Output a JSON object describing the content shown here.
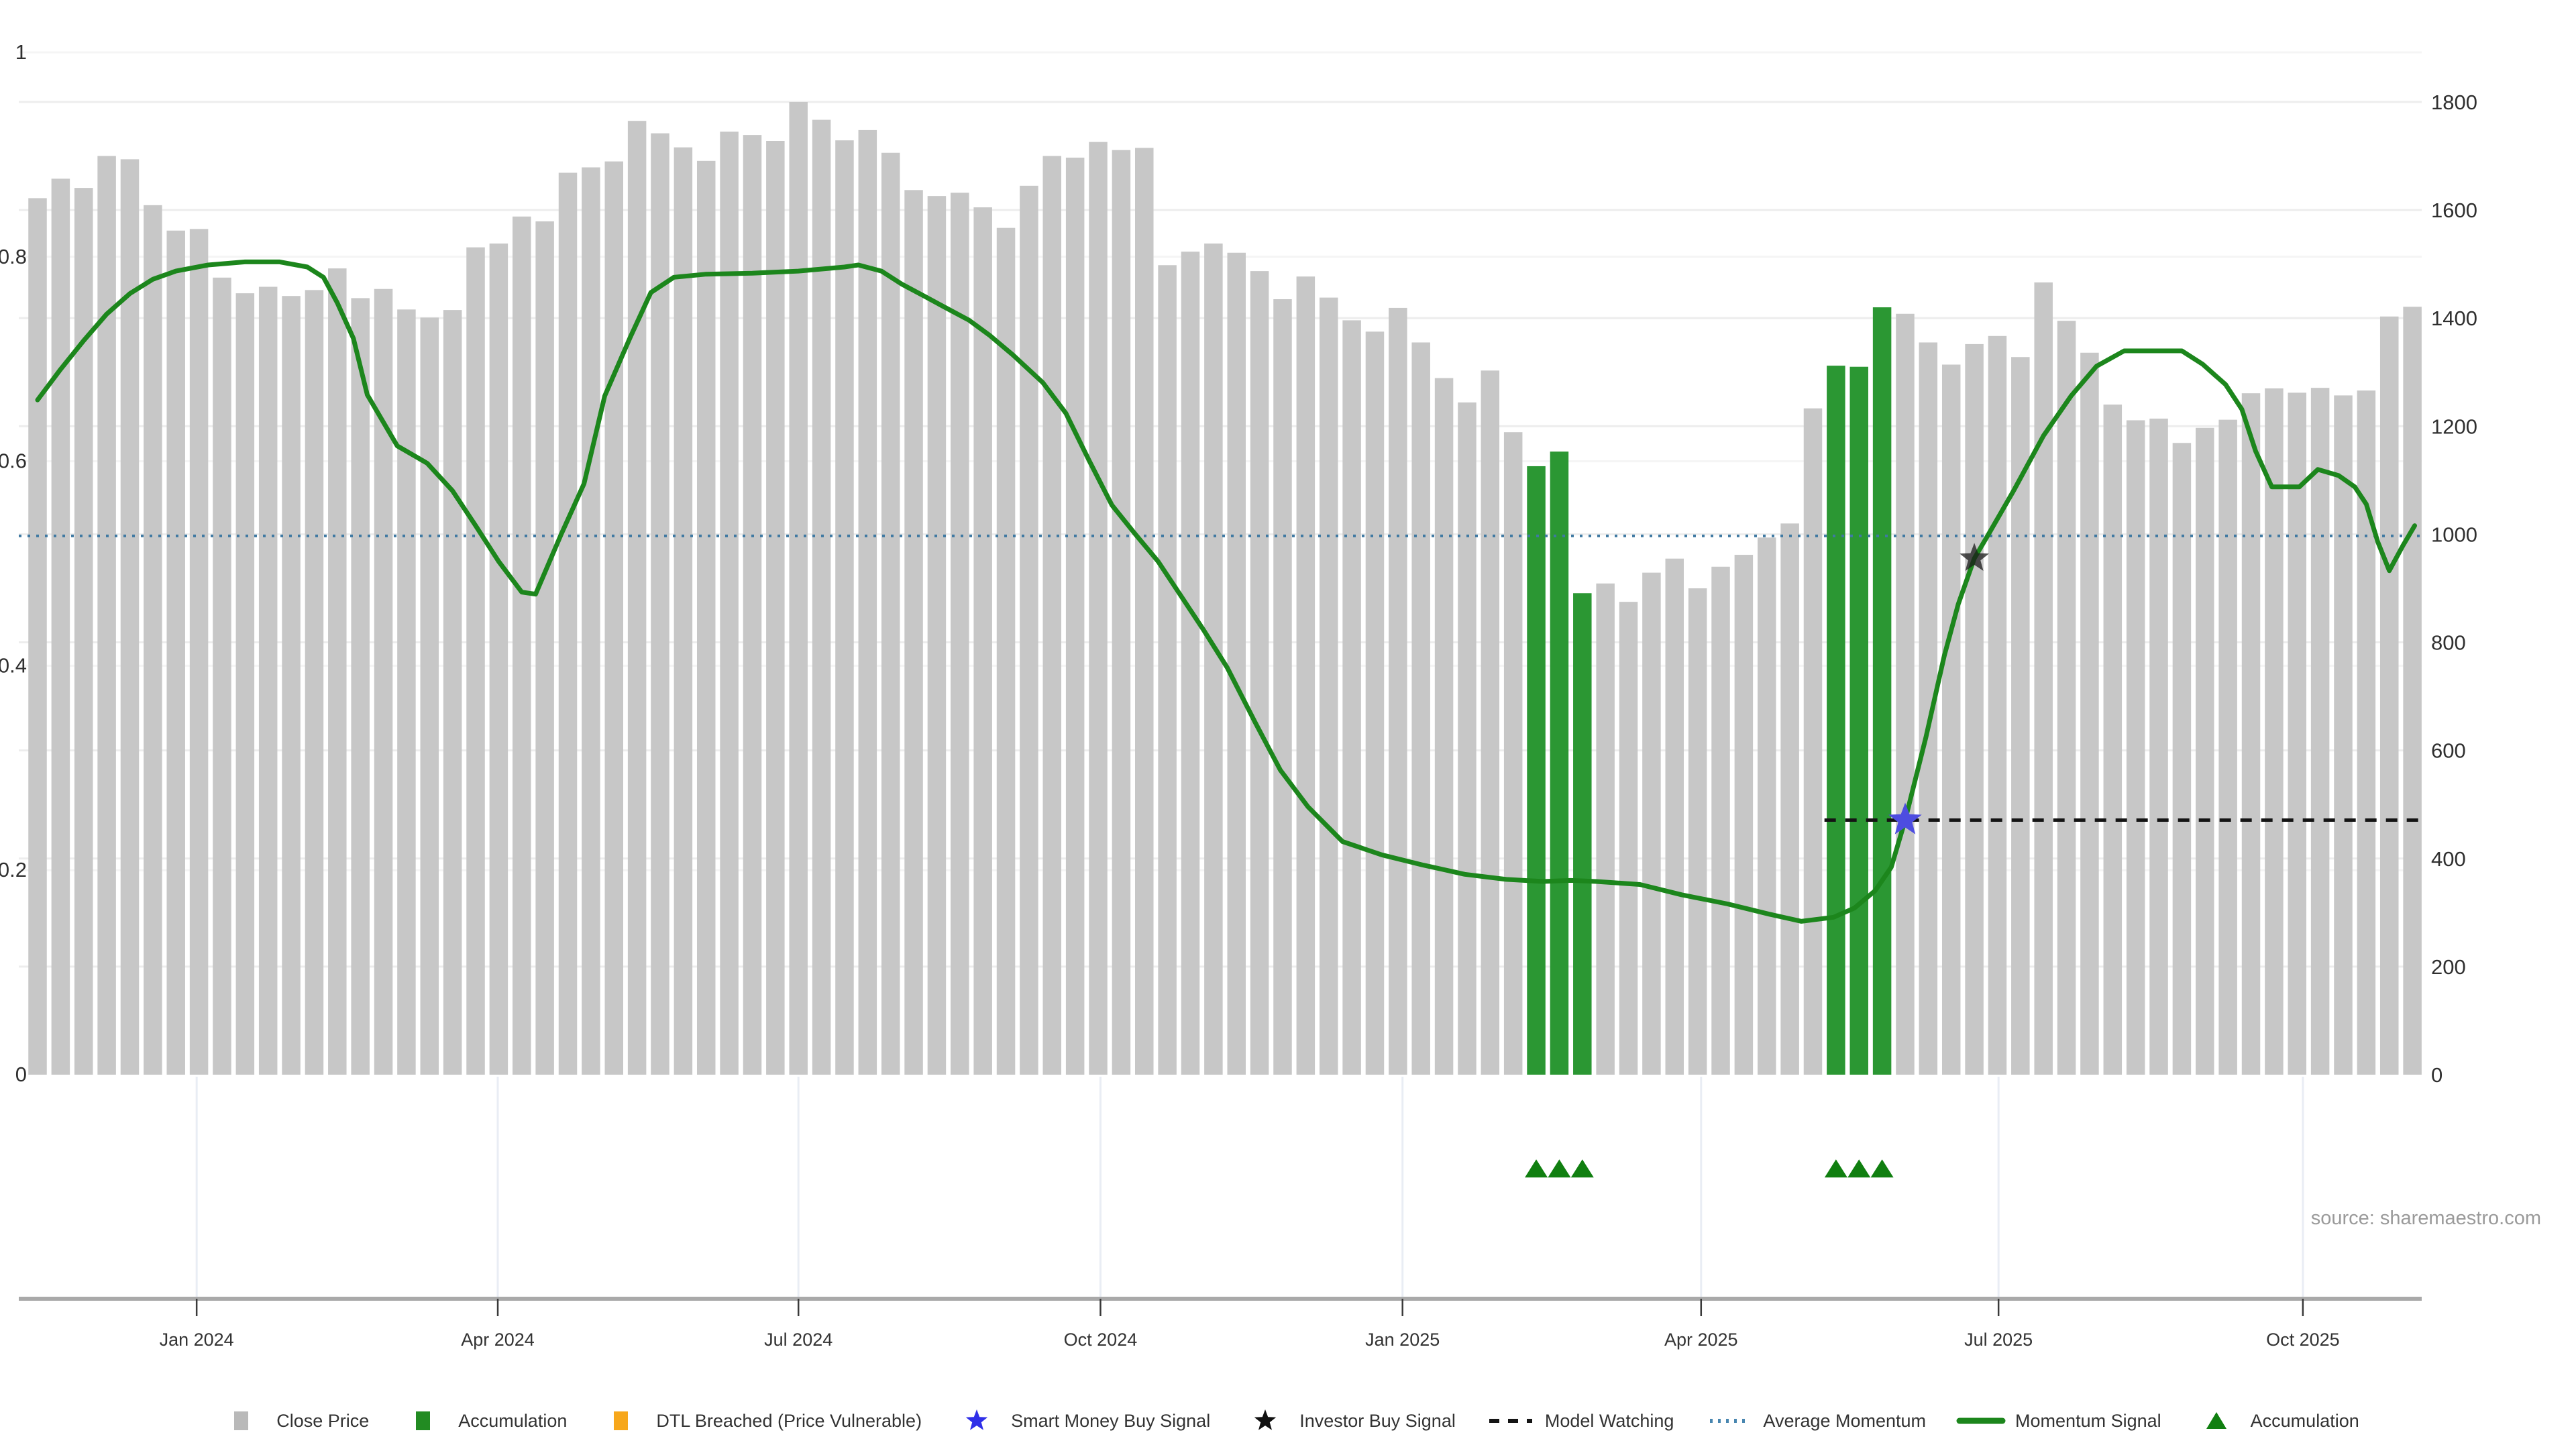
{
  "chart_data": {
    "type": "bar",
    "title": "",
    "source": "source: sharemaestro.com",
    "layout_hints": {
      "grid": "on",
      "legend_position": "bottom-center",
      "bar_color": "#c7c7c7"
    },
    "x_axis": {
      "tick_labels": [
        "Jan 2024",
        "Apr 2024",
        "Jul 2024",
        "Oct 2024",
        "Jan 2025",
        "Apr 2025",
        "Jul 2025",
        "Oct 2025"
      ],
      "tick_week_positions": [
        6.9,
        19.96,
        33.0,
        46.1,
        59.2,
        72.15,
        85.05,
        98.25
      ]
    },
    "y_axis_left": {
      "tick_values": [
        0,
        0.2,
        0.4,
        0.6,
        0.8,
        1
      ],
      "tick_labels": [
        "0",
        "0.2",
        "0.4",
        "0.6",
        "0.8",
        "1"
      ],
      "range": [
        -0.22,
        1.05
      ]
    },
    "y_axis_right": {
      "tick_values": [
        0,
        200,
        400,
        600,
        800,
        1000,
        1200,
        1400,
        1600,
        1800
      ],
      "range": [
        -420,
        1990
      ]
    },
    "series": {
      "close_price": {
        "name": "Close Price",
        "axis": "right",
        "values": [
          1622,
          1658,
          1641,
          1700,
          1694,
          1609,
          1562,
          1565,
          1475,
          1446,
          1458,
          1441,
          1452,
          1492,
          1437,
          1454,
          1416,
          1401,
          1415,
          1531,
          1538,
          1588,
          1579,
          1669,
          1679,
          1690,
          1765,
          1742,
          1716,
          1691,
          1745,
          1739,
          1728,
          1800,
          1767,
          1729,
          1748,
          1706,
          1637,
          1626,
          1632,
          1605,
          1567,
          1645,
          1700,
          1697,
          1726,
          1711,
          1715,
          1498,
          1523,
          1538,
          1521,
          1487,
          1435,
          1477,
          1438,
          1396,
          1375,
          1419,
          1355,
          1289,
          1244,
          1303,
          1189,
          1126,
          1153,
          891,
          909,
          875,
          929,
          955,
          900,
          940,
          962,
          994,
          1020,
          1233,
          1312,
          1310,
          1420,
          1408,
          1355,
          1314,
          1352,
          1367,
          1328,
          1466,
          1395,
          1336,
          1240,
          1211,
          1214,
          1169,
          1197,
          1212,
          1261,
          1270,
          1262,
          1271,
          1257,
          1266,
          1403,
          1421
        ]
      },
      "accumulation_bar_indices": [
        65,
        66,
        67,
        78,
        79,
        80
      ],
      "momentum_signal": {
        "name": "Momentum Signal",
        "axis": "left",
        "points": [
          [
            0,
            0.66
          ],
          [
            1,
            0.69
          ],
          [
            2,
            0.718
          ],
          [
            3,
            0.744
          ],
          [
            4,
            0.764
          ],
          [
            5,
            0.778
          ],
          [
            6,
            0.786
          ],
          [
            7.4,
            0.792
          ],
          [
            9,
            0.795
          ],
          [
            10.5,
            0.795
          ],
          [
            11.7,
            0.79
          ],
          [
            12.4,
            0.78
          ],
          [
            13,
            0.755
          ],
          [
            13.7,
            0.72
          ],
          [
            14.3,
            0.665
          ],
          [
            15.6,
            0.615
          ],
          [
            16.9,
            0.598
          ],
          [
            18,
            0.571
          ],
          [
            19,
            0.537
          ],
          [
            20,
            0.502
          ],
          [
            21,
            0.472
          ],
          [
            21.6,
            0.47
          ],
          [
            22.7,
            0.528
          ],
          [
            23.7,
            0.578
          ],
          [
            24.6,
            0.664
          ],
          [
            25.7,
            0.721
          ],
          [
            26.6,
            0.765
          ],
          [
            27.6,
            0.78
          ],
          [
            29,
            0.783
          ],
          [
            31,
            0.784
          ],
          [
            33,
            0.786
          ],
          [
            35,
            0.79
          ],
          [
            35.6,
            0.792
          ],
          [
            36.6,
            0.786
          ],
          [
            37.5,
            0.773
          ],
          [
            38.5,
            0.761
          ],
          [
            39.4,
            0.75
          ],
          [
            40.4,
            0.738
          ],
          [
            41.3,
            0.723
          ],
          [
            42.3,
            0.704
          ],
          [
            43.6,
            0.677
          ],
          [
            44.6,
            0.647
          ],
          [
            45.6,
            0.601
          ],
          [
            46.6,
            0.557
          ],
          [
            47.6,
            0.529
          ],
          [
            48.6,
            0.502
          ],
          [
            49.6,
            0.468
          ],
          [
            50.6,
            0.434
          ],
          [
            51.6,
            0.398
          ],
          [
            52.8,
            0.345
          ],
          [
            53.9,
            0.298
          ],
          [
            55.1,
            0.262
          ],
          [
            56.6,
            0.228
          ],
          [
            58.3,
            0.215
          ],
          [
            60.1,
            0.205
          ],
          [
            61.9,
            0.196
          ],
          [
            63.7,
            0.191
          ],
          [
            65.3,
            0.189
          ],
          [
            66.5,
            0.19
          ],
          [
            67.6,
            0.189
          ],
          [
            69.5,
            0.186
          ],
          [
            71.3,
            0.176
          ],
          [
            73.3,
            0.167
          ],
          [
            75.1,
            0.157
          ],
          [
            76.5,
            0.15
          ],
          [
            77.9,
            0.154
          ],
          [
            78.8,
            0.163
          ],
          [
            79.7,
            0.18
          ],
          [
            80.4,
            0.203
          ],
          [
            81,
            0.249
          ],
          [
            81.9,
            0.33
          ],
          [
            82.7,
            0.41
          ],
          [
            83.3,
            0.46
          ],
          [
            84,
            0.505
          ],
          [
            84.6,
            0.528
          ],
          [
            85.7,
            0.571
          ],
          [
            87,
            0.625
          ],
          [
            88.2,
            0.664
          ],
          [
            89.3,
            0.693
          ],
          [
            90.5,
            0.708
          ],
          [
            93,
            0.708
          ],
          [
            93.9,
            0.695
          ],
          [
            94.9,
            0.675
          ],
          [
            95.6,
            0.651
          ],
          [
            96.2,
            0.61
          ],
          [
            96.9,
            0.575
          ],
          [
            98.1,
            0.575
          ],
          [
            98.9,
            0.592
          ],
          [
            99.8,
            0.586
          ],
          [
            100.5,
            0.575
          ],
          [
            101,
            0.558
          ],
          [
            101.5,
            0.521
          ],
          [
            102,
            0.493
          ],
          [
            102.6,
            0.518
          ],
          [
            103.1,
            0.537
          ]
        ]
      },
      "average_momentum": {
        "name": "Average Momentum",
        "axis": "left",
        "value": 0.527
      },
      "model_watching": {
        "name": "Model Watching",
        "axis": "left",
        "value": 0.249,
        "from_week": 77.5,
        "to_week": 103.3
      },
      "smart_money_buy_signal": {
        "name": "Smart Money Buy Signal",
        "week": 81,
        "value": 0.249
      },
      "investor_buy_signal": {
        "name": "Investor Buy Signal",
        "week": 84,
        "value": 0.505
      },
      "accumulation_marker_weeks": [
        65,
        66,
        67,
        78,
        79,
        80
      ],
      "accumulation_marker_value": -0.092
    },
    "colors": {
      "bar_gray": "#c7c7c7",
      "accumulation_green": "#2b9733",
      "momentum_line": "#1c861c",
      "triangle_green": "#107f10",
      "average_momentum_blue": "#3f79a2",
      "model_watching_black": "#141414",
      "smart_money_star": "#4d4de0",
      "investor_star": "#1a1a1a",
      "dtl_orange": "#f7a71b",
      "legend_gray": "#b9b9b9"
    },
    "legend": [
      {
        "slug": "close-price",
        "kind": "square",
        "color": "#b9b9b9",
        "label": "Close Price"
      },
      {
        "slug": "accumulation-bar",
        "kind": "square",
        "color": "#228b22",
        "label": "Accumulation"
      },
      {
        "slug": "dtl-breached",
        "kind": "square",
        "color": "#f7a71b",
        "label": "DTL Breached (Price Vulnerable)"
      },
      {
        "slug": "smart-money-buy-signal",
        "kind": "star",
        "color": "#2f2fe8",
        "label": "Smart Money Buy Signal"
      },
      {
        "slug": "investor-buy-signal",
        "kind": "star",
        "color": "#111111",
        "label": "Investor Buy Signal"
      },
      {
        "slug": "model-watching",
        "kind": "dashes",
        "color": "#141414",
        "label": "Model Watching"
      },
      {
        "slug": "average-momentum",
        "kind": "dots",
        "color": "#4886b0",
        "label": "Average Momentum"
      },
      {
        "slug": "momentum-signal",
        "kind": "line",
        "color": "#1c861c",
        "label": "Momentum Signal"
      },
      {
        "slug": "accumulation-marker",
        "kind": "triangle",
        "color": "#107f10",
        "label": "Accumulation"
      }
    ]
  }
}
